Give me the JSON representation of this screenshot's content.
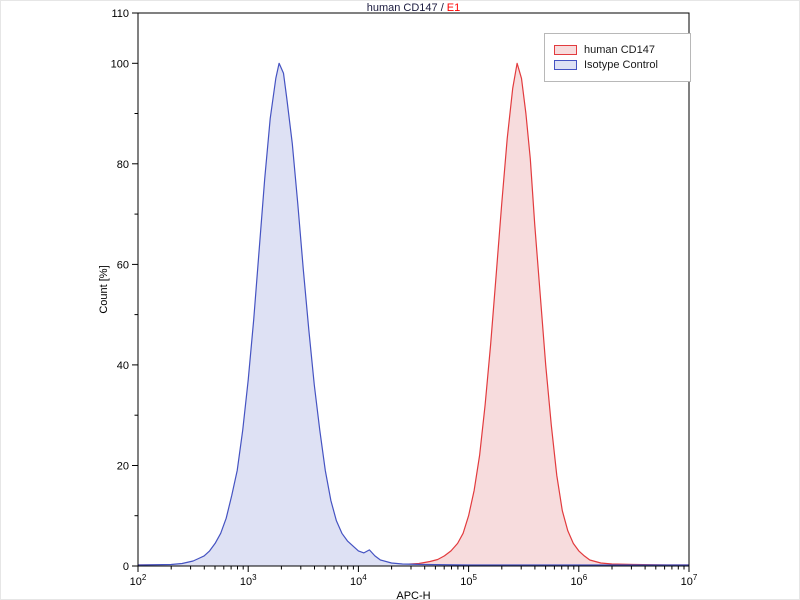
{
  "title": {
    "main": "human CD147 /",
    "sample": "E1",
    "main_color": "#1a1a3e",
    "sample_color": "#ff0000"
  },
  "chart_data": {
    "type": "area",
    "subtype": "flow-cytometry-histogram-overlay",
    "title": "human CD147 / E1",
    "xlabel": "APC-H",
    "ylabel": "Count [%]",
    "x_scale": "log",
    "xlim_log10": [
      2,
      7
    ],
    "x_ticks": [
      "10^2",
      "10^3",
      "10^4",
      "10^5",
      "10^6",
      "10^7"
    ],
    "ylim": [
      0,
      110
    ],
    "y_major_ticks": [
      0,
      20,
      40,
      60,
      80,
      100,
      110
    ],
    "y_minor_step": 10,
    "grid": "off",
    "legend_position": "top-right",
    "axis_color": "#000000",
    "series": [
      {
        "name": "human CD147",
        "line_color": "#e23b3e",
        "fill_color": "#f7dcdd",
        "peak_x": 275000,
        "peak_y": 100,
        "x_log10": [
          2.0,
          3.0,
          4.0,
          4.4,
          4.55,
          4.65,
          4.72,
          4.78,
          4.84,
          4.9,
          4.95,
          5.0,
          5.05,
          5.1,
          5.15,
          5.2,
          5.25,
          5.3,
          5.35,
          5.4,
          5.44,
          5.48,
          5.52,
          5.56,
          5.6,
          5.65,
          5.7,
          5.75,
          5.8,
          5.85,
          5.9,
          5.95,
          6.0,
          6.05,
          6.1,
          6.2,
          6.3,
          6.5,
          6.8,
          7.0
        ],
        "values": [
          0.2,
          0.2,
          0.2,
          0.3,
          0.5,
          0.9,
          1.3,
          2.0,
          3.0,
          4.5,
          6.5,
          10,
          15,
          22,
          32,
          44,
          58,
          72,
          85,
          95,
          100,
          97,
          90,
          81,
          68,
          54,
          40,
          28,
          18,
          11,
          7,
          4.5,
          3,
          2,
          1.2,
          0.6,
          0.4,
          0.3,
          0.2,
          0.2
        ]
      },
      {
        "name": "Isotype Control",
        "line_color": "#4553c2",
        "fill_color": "#dee1f4",
        "peak_x": 1900,
        "peak_y": 100,
        "x_log10": [
          2.0,
          2.3,
          2.4,
          2.5,
          2.55,
          2.6,
          2.65,
          2.7,
          2.75,
          2.8,
          2.85,
          2.9,
          2.95,
          3.0,
          3.05,
          3.1,
          3.15,
          3.2,
          3.25,
          3.28,
          3.32,
          3.35,
          3.4,
          3.45,
          3.5,
          3.55,
          3.6,
          3.65,
          3.7,
          3.75,
          3.8,
          3.85,
          3.9,
          3.95,
          4.0,
          4.05,
          4.1,
          4.15,
          4.2,
          4.3,
          4.4,
          4.6,
          5.0,
          5.5,
          6.0,
          6.5,
          7.0
        ],
        "values": [
          0.2,
          0.3,
          0.5,
          1.0,
          1.5,
          2.0,
          3.0,
          4.5,
          6.5,
          9.5,
          14,
          19,
          27,
          37,
          49,
          63,
          77,
          89,
          97,
          100,
          98,
          93,
          84,
          72,
          59,
          47,
          36,
          27,
          19,
          13,
          9,
          6.5,
          5,
          4,
          3,
          2.6,
          3.2,
          2.0,
          1.2,
          0.6,
          0.4,
          0.3,
          0.2,
          0.2,
          0.2,
          0.2,
          0.2
        ]
      }
    ]
  }
}
